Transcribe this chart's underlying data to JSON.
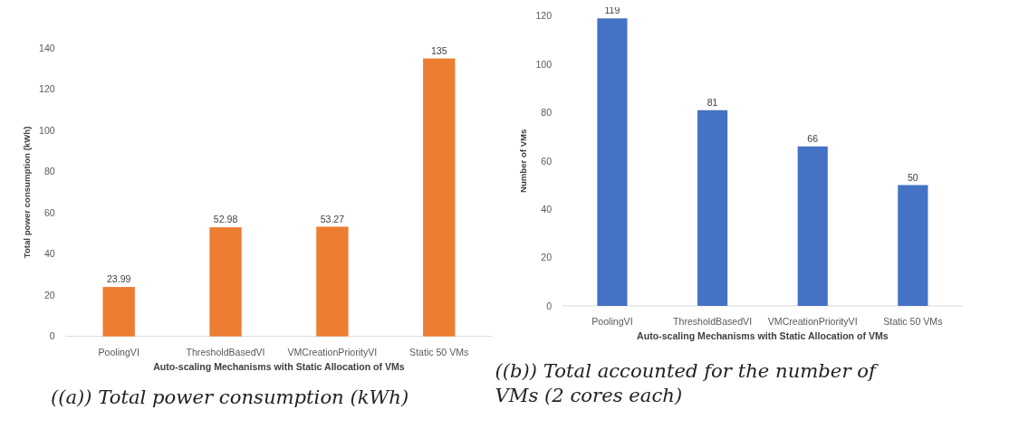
{
  "chart_data": [
    {
      "type": "bar",
      "title": "((a)) Total power consumption (kWh)",
      "xlabel": "Auto-scaling Mechanisms with Static Allocation of VMs",
      "ylabel": "Total power consumption (kWh)",
      "categories": [
        "PoolingVI",
        "ThresholdBasedVI",
        "VMCreationPriorityVI",
        "Static 50 VMs"
      ],
      "values": [
        23.99,
        52.98,
        53.27,
        135
      ],
      "color": "#ed7d31",
      "ylim": [
        0,
        140
      ],
      "yticks": [
        0,
        20,
        40,
        60,
        80,
        100,
        120,
        140
      ],
      "data_labels": true,
      "grid": false
    },
    {
      "type": "bar",
      "title": "((b)) Total accounted for the number of VMs (2 cores each)",
      "xlabel": "Auto-scaling Mechanisms with Static Allocation of VMs",
      "ylabel": "Number of VMs",
      "categories": [
        "PoolingVI",
        "ThresholdBasedVI",
        "VMCreationPriorityVI",
        "Static 50 VMs"
      ],
      "values": [
        119,
        81,
        66,
        50
      ],
      "color": "#4472c4",
      "ylim": [
        0,
        120
      ],
      "yticks": [
        0,
        20,
        40,
        60,
        80,
        100,
        120
      ],
      "data_labels": true,
      "grid": false
    }
  ]
}
